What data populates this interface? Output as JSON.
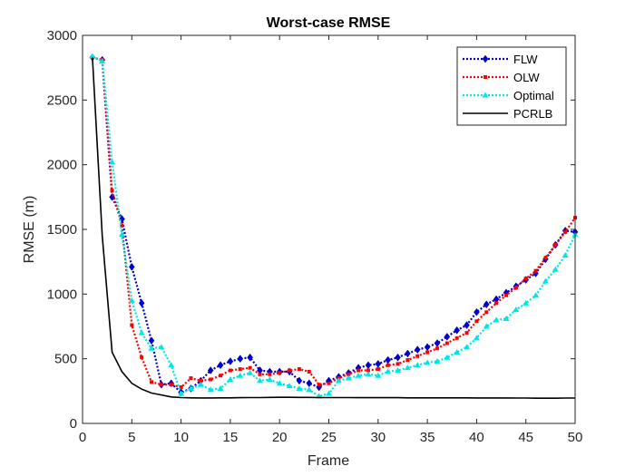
{
  "chart_data": {
    "type": "line",
    "title": "Worst-case RMSE",
    "xlabel": "Frame",
    "ylabel": "RMSE (m)",
    "xlim": [
      0,
      50
    ],
    "ylim": [
      0,
      3000
    ],
    "xticks": [
      0,
      5,
      10,
      15,
      20,
      25,
      30,
      35,
      40,
      45,
      50
    ],
    "yticks": [
      0,
      500,
      1000,
      1500,
      2000,
      2500,
      3000
    ],
    "grid": false,
    "legend_position": "top-right",
    "series": [
      {
        "name": "FLW",
        "color": "#0000cc",
        "line_style": "dotted",
        "marker": "diamond",
        "x": [
          1,
          2,
          3,
          4,
          5,
          6,
          7,
          8,
          9,
          10,
          11,
          12,
          13,
          14,
          15,
          16,
          17,
          18,
          19,
          20,
          21,
          22,
          23,
          24,
          25,
          26,
          27,
          28,
          29,
          30,
          31,
          32,
          33,
          34,
          35,
          36,
          37,
          38,
          39,
          40,
          41,
          42,
          43,
          44,
          45,
          46,
          47,
          48,
          49,
          50
        ],
        "values": [
          2830,
          2810,
          1750,
          1580,
          1210,
          930,
          640,
          300,
          310,
          240,
          270,
          330,
          410,
          450,
          480,
          500,
          510,
          410,
          400,
          400,
          400,
          330,
          310,
          280,
          330,
          360,
          390,
          430,
          450,
          460,
          490,
          510,
          540,
          570,
          590,
          620,
          670,
          720,
          760,
          860,
          920,
          960,
          1010,
          1060,
          1110,
          1160,
          1270,
          1380,
          1490,
          1480
        ]
      },
      {
        "name": "OLW",
        "color": "#ff0000",
        "line_style": "dotted",
        "marker": "square",
        "x": [
          1,
          2,
          3,
          4,
          5,
          6,
          7,
          8,
          9,
          10,
          11,
          12,
          13,
          14,
          15,
          16,
          17,
          18,
          19,
          20,
          21,
          22,
          23,
          24,
          25,
          26,
          27,
          28,
          29,
          30,
          31,
          32,
          33,
          34,
          35,
          36,
          37,
          38,
          39,
          40,
          41,
          42,
          43,
          44,
          45,
          46,
          47,
          48,
          49,
          50
        ],
        "values": [
          2830,
          2810,
          1800,
          1530,
          760,
          510,
          320,
          300,
          300,
          280,
          350,
          330,
          340,
          370,
          410,
          420,
          430,
          380,
          380,
          390,
          410,
          420,
          400,
          300,
          310,
          350,
          380,
          410,
          410,
          420,
          450,
          460,
          490,
          520,
          550,
          580,
          620,
          660,
          700,
          790,
          860,
          930,
          990,
          1050,
          1120,
          1180,
          1280,
          1380,
          1480,
          1590
        ]
      },
      {
        "name": "Optimal",
        "color": "#00e6e6",
        "line_style": "dotted",
        "marker": "triangle",
        "x": [
          1,
          2,
          3,
          4,
          5,
          6,
          7,
          8,
          9,
          10,
          11,
          12,
          13,
          14,
          15,
          16,
          17,
          18,
          19,
          20,
          21,
          22,
          23,
          24,
          25,
          26,
          27,
          28,
          29,
          30,
          31,
          32,
          33,
          34,
          35,
          36,
          37,
          38,
          39,
          40,
          41,
          42,
          43,
          44,
          45,
          46,
          47,
          48,
          49,
          50
        ],
        "values": [
          2840,
          2800,
          2020,
          1460,
          950,
          700,
          580,
          590,
          450,
          230,
          270,
          300,
          260,
          270,
          340,
          370,
          390,
          330,
          340,
          310,
          290,
          270,
          260,
          210,
          230,
          330,
          350,
          370,
          380,
          370,
          400,
          410,
          430,
          450,
          470,
          480,
          510,
          550,
          590,
          660,
          750,
          800,
          810,
          880,
          930,
          990,
          1100,
          1190,
          1300,
          1460
        ]
      },
      {
        "name": "PCRLB",
        "color": "#000000",
        "line_style": "solid",
        "marker": "none",
        "x": [
          1,
          2,
          3,
          4,
          5,
          6,
          7,
          8,
          9,
          10,
          11,
          12,
          13,
          14,
          15,
          16,
          17,
          18,
          19,
          20,
          21,
          22,
          23,
          24,
          25,
          26,
          27,
          28,
          29,
          30,
          31,
          32,
          33,
          34,
          35,
          36,
          37,
          38,
          39,
          40,
          41,
          42,
          43,
          44,
          45,
          46,
          47,
          48,
          49,
          50
        ],
        "values": [
          2830,
          1450,
          550,
          400,
          310,
          265,
          235,
          220,
          205,
          200,
          198,
          197,
          197,
          198,
          198,
          199,
          200,
          200,
          201,
          202,
          202,
          201,
          201,
          200,
          200,
          200,
          200,
          199,
          199,
          199,
          199,
          199,
          198,
          198,
          198,
          198,
          198,
          198,
          198,
          197,
          197,
          197,
          197,
          196,
          196,
          195,
          195,
          195,
          196,
          196
        ]
      }
    ]
  }
}
